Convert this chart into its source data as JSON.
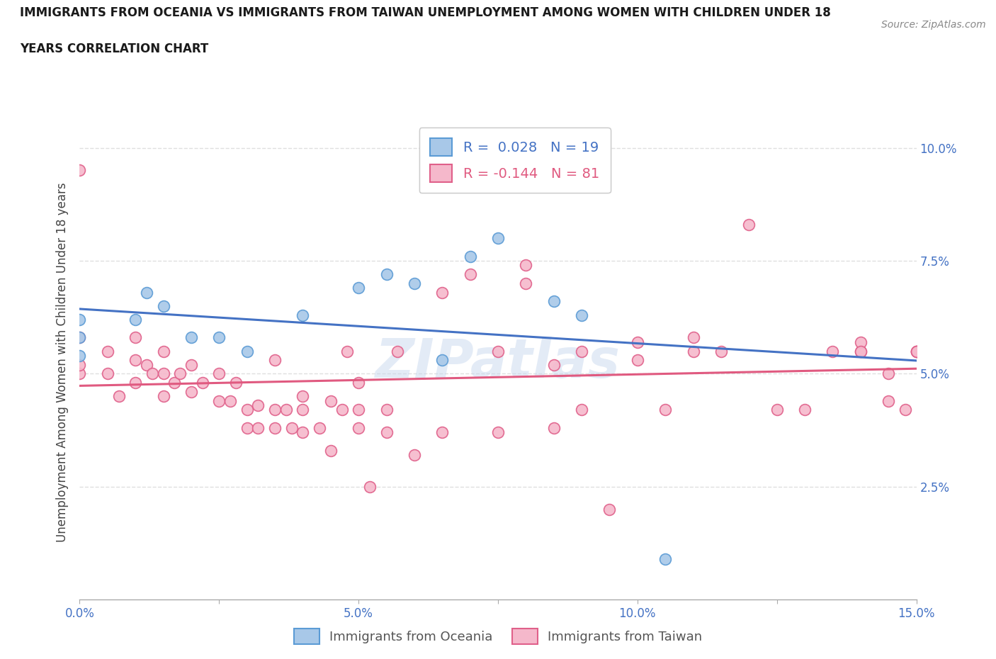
{
  "title_line1": "IMMIGRANTS FROM OCEANIA VS IMMIGRANTS FROM TAIWAN UNEMPLOYMENT AMONG WOMEN WITH CHILDREN UNDER 18",
  "title_line2": "YEARS CORRELATION CHART",
  "source_text": "Source: ZipAtlas.com",
  "ylabel": "Unemployment Among Women with Children Under 18 years",
  "xlim": [
    0.0,
    0.15
  ],
  "ylim": [
    0.0,
    0.105
  ],
  "xticks": [
    0.0,
    0.025,
    0.05,
    0.075,
    0.1,
    0.125,
    0.15
  ],
  "xticklabels": [
    "0.0%",
    "",
    "5.0%",
    "",
    "10.0%",
    "",
    "15.0%"
  ],
  "ytick_positions": [
    0.025,
    0.05,
    0.075,
    0.1
  ],
  "ytick_labels": [
    "2.5%",
    "5.0%",
    "7.5%",
    "10.0%"
  ],
  "oceania_color": "#a8c8e8",
  "taiwan_color": "#f5b8cb",
  "oceania_edge_color": "#5b9bd5",
  "taiwan_edge_color": "#e0608a",
  "oceania_line_color": "#4472c4",
  "taiwan_line_color": "#e05a80",
  "r_oceania": 0.028,
  "n_oceania": 19,
  "r_taiwan": -0.144,
  "n_taiwan": 81,
  "legend_label_oceania": "Immigrants from Oceania",
  "legend_label_taiwan": "Immigrants from Taiwan",
  "background_color": "#ffffff",
  "grid_color": "#e0e0e0",
  "watermark_text": "ZIPatlas",
  "oceania_x": [
    0.0,
    0.0,
    0.0,
    0.01,
    0.012,
    0.015,
    0.02,
    0.025,
    0.03,
    0.04,
    0.05,
    0.055,
    0.06,
    0.065,
    0.07,
    0.085,
    0.09,
    0.105,
    0.075
  ],
  "oceania_y": [
    0.054,
    0.058,
    0.062,
    0.062,
    0.068,
    0.065,
    0.058,
    0.058,
    0.055,
    0.063,
    0.069,
    0.072,
    0.07,
    0.053,
    0.076,
    0.066,
    0.063,
    0.009,
    0.08
  ],
  "taiwan_x": [
    0.0,
    0.0,
    0.0,
    0.0,
    0.005,
    0.005,
    0.007,
    0.01,
    0.01,
    0.01,
    0.012,
    0.013,
    0.015,
    0.015,
    0.015,
    0.017,
    0.018,
    0.02,
    0.02,
    0.022,
    0.025,
    0.025,
    0.027,
    0.028,
    0.03,
    0.03,
    0.032,
    0.032,
    0.035,
    0.035,
    0.035,
    0.037,
    0.038,
    0.04,
    0.04,
    0.04,
    0.043,
    0.045,
    0.045,
    0.047,
    0.048,
    0.05,
    0.05,
    0.05,
    0.052,
    0.055,
    0.055,
    0.057,
    0.06,
    0.065,
    0.065,
    0.07,
    0.075,
    0.075,
    0.08,
    0.08,
    0.085,
    0.085,
    0.09,
    0.09,
    0.095,
    0.1,
    0.1,
    0.105,
    0.11,
    0.11,
    0.115,
    0.12,
    0.125,
    0.13,
    0.135,
    0.14,
    0.14,
    0.14,
    0.145,
    0.145,
    0.148,
    0.15,
    0.15,
    0.15,
    0.15
  ],
  "taiwan_y": [
    0.05,
    0.052,
    0.058,
    0.095,
    0.05,
    0.055,
    0.045,
    0.048,
    0.053,
    0.058,
    0.052,
    0.05,
    0.045,
    0.05,
    0.055,
    0.048,
    0.05,
    0.046,
    0.052,
    0.048,
    0.044,
    0.05,
    0.044,
    0.048,
    0.038,
    0.042,
    0.038,
    0.043,
    0.038,
    0.042,
    0.053,
    0.042,
    0.038,
    0.045,
    0.037,
    0.042,
    0.038,
    0.033,
    0.044,
    0.042,
    0.055,
    0.038,
    0.042,
    0.048,
    0.025,
    0.042,
    0.037,
    0.055,
    0.032,
    0.037,
    0.068,
    0.072,
    0.037,
    0.055,
    0.07,
    0.074,
    0.038,
    0.052,
    0.055,
    0.042,
    0.02,
    0.053,
    0.057,
    0.042,
    0.055,
    0.058,
    0.055,
    0.083,
    0.042,
    0.042,
    0.055,
    0.055,
    0.057,
    0.055,
    0.044,
    0.05,
    0.042,
    0.055,
    0.055,
    0.055,
    0.055
  ]
}
